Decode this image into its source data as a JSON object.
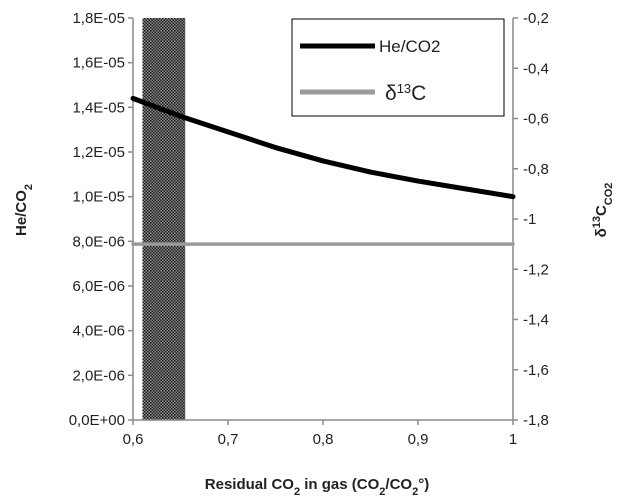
{
  "chart_data": {
    "type": "line",
    "x": [
      0.6,
      0.65,
      0.7,
      0.75,
      0.8,
      0.85,
      0.9,
      0.95,
      1.0
    ],
    "xlim": [
      0.6,
      1.0
    ],
    "xticks": [
      "0,6",
      "0,7",
      "0,8",
      "0,9",
      "1"
    ],
    "xlabel": {
      "pre": "Residual CO",
      "sub": "2",
      "mid": " in gas (CO",
      "sub2": "2",
      "post": "/CO",
      "sub3": "2",
      "end": "°)"
    },
    "ylim": [
      0,
      1.8e-05
    ],
    "yticks": [
      "0,0E+00",
      "2,0E-06",
      "4,0E-06",
      "6,0E-06",
      "8,0E-06",
      "1,0E-05",
      "1,2E-05",
      "1,4E-05",
      "1,6E-05",
      "1,8E-05"
    ],
    "ylabel": {
      "pre": "He/CO",
      "sub": "2"
    },
    "y2lim": [
      -1.8,
      -0.2
    ],
    "y2ticks": [
      "-1,8",
      "-1,6",
      "-1,4",
      "-1,2",
      "-1",
      "-0,8",
      "-0,6",
      "-0,4",
      "-0,2"
    ],
    "y2label": {
      "delta": "δ",
      "sup": "13",
      "c": "C",
      "sub": "CO2"
    },
    "series": [
      {
        "name": "He/CO2",
        "axis": "left",
        "color": "#000000",
        "values": [
          1.44e-05,
          1.36e-05,
          1.29e-05,
          1.22e-05,
          1.16e-05,
          1.11e-05,
          1.07e-05,
          1.035e-05,
          1e-05
        ]
      },
      {
        "name": "δ13C",
        "axis": "right",
        "color": "#9a9a9a",
        "values": [
          -1.1,
          -1.1,
          -1.1,
          -1.1,
          -1.1,
          -1.1,
          -1.1,
          -1.1,
          -1.1
        ]
      }
    ],
    "shaded_band": {
      "x_range": [
        0.61,
        0.655
      ],
      "color": "#555555"
    },
    "legend": {
      "placement": "top-right",
      "entries": [
        {
          "label": "He/CO2"
        },
        {
          "delta": "δ",
          "sup": "13",
          "c": "C"
        }
      ]
    },
    "grid": false
  }
}
